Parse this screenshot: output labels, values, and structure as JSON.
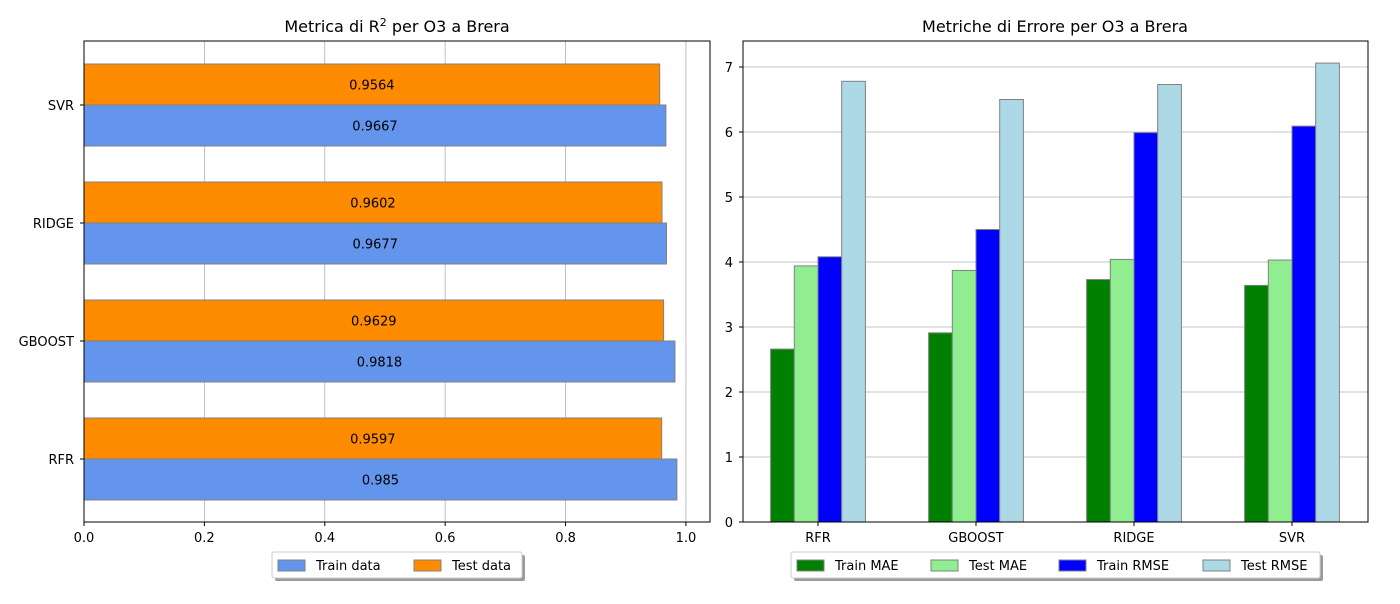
{
  "chart_data": [
    {
      "type": "bar",
      "orientation": "horizontal",
      "title_main": "Metrica di R",
      "title_sup": "2",
      "title_rest": " per O3 a Brera",
      "categories": [
        "RFR",
        "GBOOST",
        "RIDGE",
        "SVR"
      ],
      "series": [
        {
          "name": "Train data",
          "color": "#6495ED",
          "values": [
            0.985,
            0.9818,
            0.9677,
            0.9667
          ],
          "labels": [
            "0.985",
            "0.9818",
            "0.9677",
            "0.9667"
          ]
        },
        {
          "name": "Test data",
          "color": "#FF8C00",
          "values": [
            0.9597,
            0.9629,
            0.9602,
            0.9564
          ],
          "labels": [
            "0.9597",
            "0.9629",
            "0.9602",
            "0.9564"
          ]
        }
      ],
      "xlim": [
        0,
        1.04
      ],
      "xticks": [
        0.0,
        0.2,
        0.4,
        0.6,
        0.8,
        1.0
      ],
      "xtick_labels": [
        "0.0",
        "0.2",
        "0.4",
        "0.6",
        "0.8",
        "1.0"
      ],
      "grid": "x",
      "legend_position": "bottom-center"
    },
    {
      "type": "bar",
      "orientation": "vertical",
      "title": "Metriche di Errore per O3 a Brera",
      "categories": [
        "RFR",
        "GBOOST",
        "RIDGE",
        "SVR"
      ],
      "series": [
        {
          "name": "Train MAE",
          "color": "#008000",
          "values": [
            2.66,
            2.91,
            3.73,
            3.64
          ]
        },
        {
          "name": "Test MAE",
          "color": "#90EE90",
          "values": [
            3.94,
            3.87,
            4.04,
            4.03
          ]
        },
        {
          "name": "Train RMSE",
          "color": "#0000FF",
          "values": [
            4.08,
            4.5,
            5.99,
            6.09
          ]
        },
        {
          "name": "Test RMSE",
          "color": "#ADD8E6",
          "values": [
            6.78,
            6.5,
            6.73,
            7.06
          ]
        }
      ],
      "ylim": [
        0,
        7.4
      ],
      "yticks": [
        0,
        1,
        2,
        3,
        4,
        5,
        6,
        7
      ],
      "ytick_labels": [
        "0",
        "1",
        "2",
        "3",
        "4",
        "5",
        "6",
        "7"
      ],
      "grid": "y",
      "legend_position": "bottom-center"
    }
  ]
}
